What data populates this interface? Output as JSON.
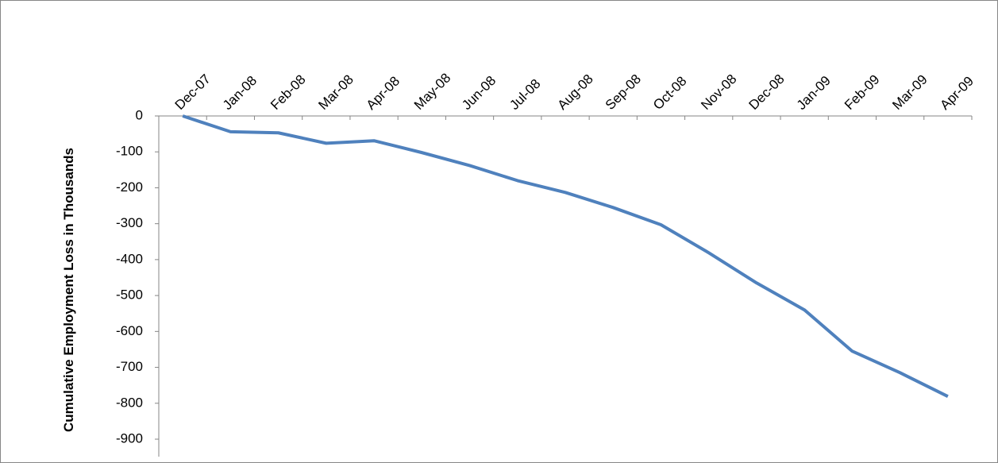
{
  "chart_data": {
    "type": "line",
    "ylabel": "Cumulative Employment Loss in Thousands",
    "categories": [
      "Dec-07",
      "Jan-08",
      "Feb-08",
      "Mar-08",
      "Apr-08",
      "May-08",
      "Jun-08",
      "Jul-08",
      "Aug-08",
      "Sep-08",
      "Oct-08",
      "Nov-08",
      "Dec-08",
      "Jan-09",
      "Feb-09",
      "Mar-09",
      "Apr-09"
    ],
    "series": [
      {
        "color": "#4f81bd",
        "values": [
          0,
          -44,
          -47,
          -76,
          -69,
          -102,
          -138,
          -180,
          -213,
          -255,
          -303,
          -381,
          -465,
          -540,
          -655,
          -715,
          -781
        ]
      }
    ],
    "ylim": [
      -900,
      0
    ],
    "yticks": [
      0,
      -100,
      -200,
      -300,
      -400,
      -500,
      -600,
      -700,
      -800,
      -900
    ],
    "grid": false
  }
}
